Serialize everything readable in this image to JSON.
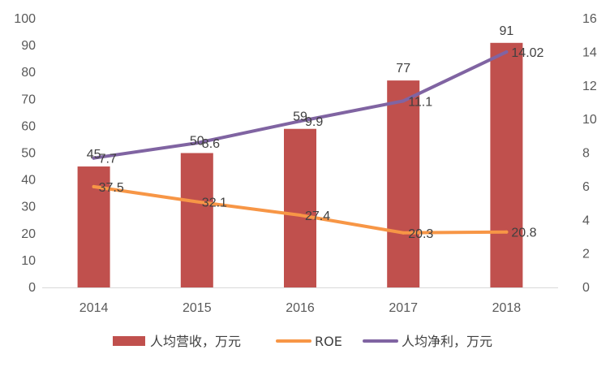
{
  "chart_data": {
    "type": "bar",
    "categories": [
      "2014",
      "2015",
      "2016",
      "2017",
      "2018"
    ],
    "series": [
      {
        "name": "人均营收，万元",
        "kind": "bar",
        "axis": "left",
        "color": "#C0504D",
        "values": [
          45,
          50,
          59,
          77,
          91
        ],
        "labels": [
          "45",
          "50",
          "59",
          "77",
          "91"
        ]
      },
      {
        "name": "ROE",
        "kind": "line",
        "axis": "left",
        "color": "#F79646",
        "values": [
          37.5,
          32.1,
          27.4,
          20.3,
          20.8
        ],
        "plot_values": [
          6,
          5.1,
          4.3,
          3.25,
          3.3
        ],
        "plot_axis": "right",
        "labels": [
          "37.5",
          "32.1",
          "27.4",
          "20.3",
          "20.8"
        ]
      },
      {
        "name": "人均净利，万元",
        "kind": "line",
        "axis": "right",
        "color": "#8064A2",
        "values": [
          7.7,
          8.6,
          9.9,
          11.1,
          14.02
        ],
        "labels": [
          "7.7",
          "8.6",
          "9.9",
          "11.1",
          "14.02"
        ]
      }
    ],
    "y_left": {
      "min": 0,
      "max": 100,
      "ticks": [
        "0",
        "10",
        "20",
        "30",
        "40",
        "50",
        "60",
        "70",
        "80",
        "90",
        "100"
      ]
    },
    "y_right": {
      "min": 0,
      "max": 16,
      "ticks": [
        "0",
        "2",
        "4",
        "6",
        "8",
        "10",
        "12",
        "14",
        "16"
      ]
    },
    "grid": false,
    "legend": "bottom"
  }
}
